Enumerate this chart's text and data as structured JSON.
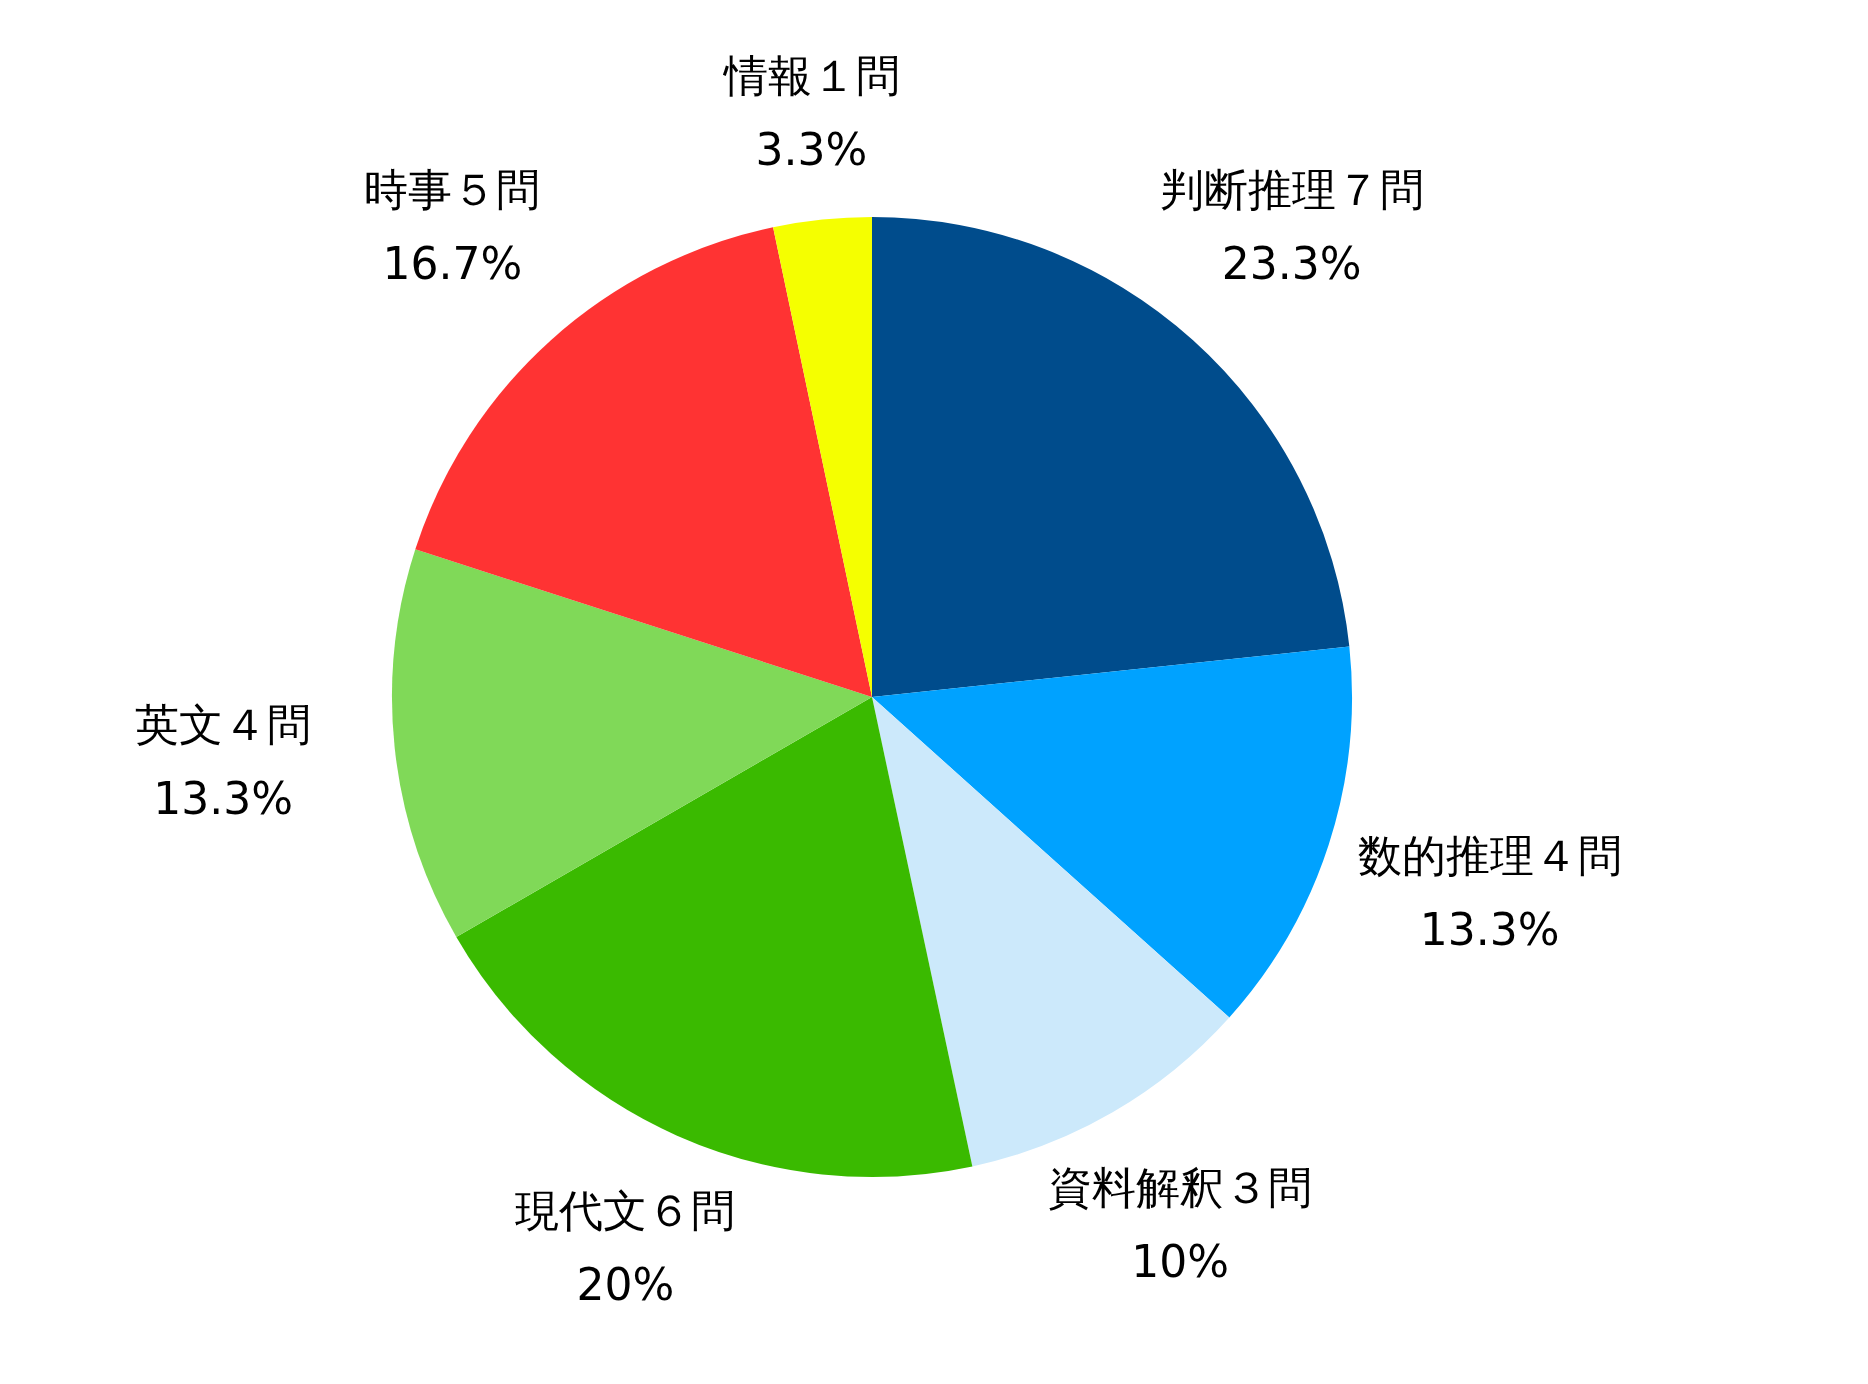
{
  "chart_data": {
    "type": "pie",
    "categories": [
      "判断推理７問",
      "数的推理４問",
      "資料解釈３問",
      "現代文６問",
      "英文４問",
      "時事５問",
      "情報１問"
    ],
    "values": [
      23.3,
      13.3,
      10,
      20,
      13.3,
      16.7,
      3.3
    ],
    "value_labels": [
      "23.3%",
      "13.3%",
      "10%",
      "20%",
      "13.3%",
      "16.7%",
      "3.3%"
    ],
    "colors": [
      "#004c8c",
      "#00a2ff",
      "#cce9fb",
      "#3aba00",
      "#80d958",
      "#ff3333",
      "#f5ff00"
    ],
    "legend": false
  }
}
